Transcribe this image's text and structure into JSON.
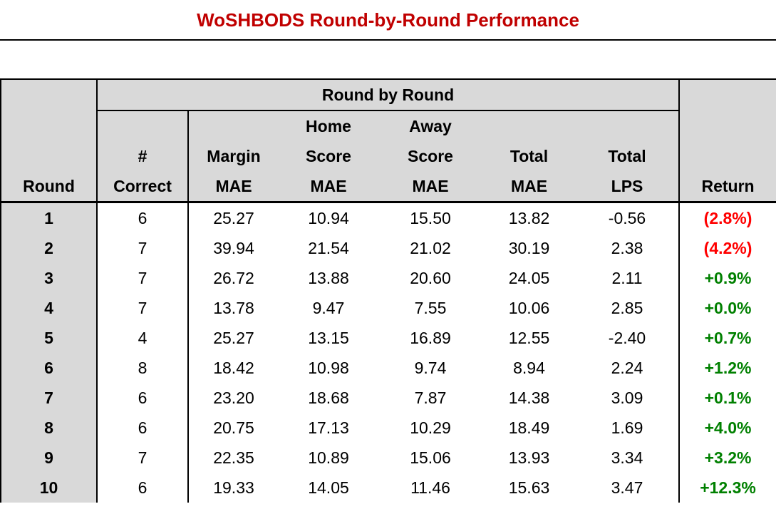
{
  "title": "WoSHBODS Round-by-Round Performance",
  "colors": {
    "title_red": "#C00000",
    "negative_return_red": "#FF0000",
    "positive_return_green": "#008000",
    "header_bg_gray": "#D9D9D9",
    "border_black": "#000000"
  },
  "table": {
    "group_header": "Round by Round",
    "headers": {
      "round": "Round",
      "correct": "#\nCorrect",
      "margin": "Margin\nMAE",
      "home": "Home\nScore\nMAE",
      "away": "Away\nScore\nMAE",
      "total": "Total\nMAE",
      "lps": "Total\nLPS",
      "ret": "Return"
    },
    "rows": [
      {
        "round": "1",
        "correct": "6",
        "margin": "25.27",
        "home": "10.94",
        "away": "15.50",
        "total": "13.82",
        "lps": "-0.56",
        "ret": "(2.8%)"
      },
      {
        "round": "2",
        "correct": "7",
        "margin": "39.94",
        "home": "21.54",
        "away": "21.02",
        "total": "30.19",
        "lps": "2.38",
        "ret": "(4.2%)"
      },
      {
        "round": "3",
        "correct": "7",
        "margin": "26.72",
        "home": "13.88",
        "away": "20.60",
        "total": "24.05",
        "lps": "2.11",
        "ret": "+0.9%"
      },
      {
        "round": "4",
        "correct": "7",
        "margin": "13.78",
        "home": "9.47",
        "away": "7.55",
        "total": "10.06",
        "lps": "2.85",
        "ret": "+0.0%"
      },
      {
        "round": "5",
        "correct": "4",
        "margin": "25.27",
        "home": "13.15",
        "away": "16.89",
        "total": "12.55",
        "lps": "-2.40",
        "ret": "+0.7%"
      },
      {
        "round": "6",
        "correct": "8",
        "margin": "18.42",
        "home": "10.98",
        "away": "9.74",
        "total": "8.94",
        "lps": "2.24",
        "ret": "+1.2%"
      },
      {
        "round": "7",
        "correct": "6",
        "margin": "23.20",
        "home": "18.68",
        "away": "7.87",
        "total": "14.38",
        "lps": "3.09",
        "ret": "+0.1%"
      },
      {
        "round": "8",
        "correct": "6",
        "margin": "20.75",
        "home": "17.13",
        "away": "10.29",
        "total": "18.49",
        "lps": "1.69",
        "ret": "+4.0%"
      },
      {
        "round": "9",
        "correct": "7",
        "margin": "22.35",
        "home": "10.89",
        "away": "15.06",
        "total": "13.93",
        "lps": "3.34",
        "ret": "+3.2%"
      },
      {
        "round": "10",
        "correct": "6",
        "margin": "19.33",
        "home": "14.05",
        "away": "11.46",
        "total": "15.63",
        "lps": "3.47",
        "ret": "+12.3%"
      }
    ]
  },
  "chart_data": {
    "type": "table",
    "title": "WoSHBODS Round-by-Round Performance",
    "columns": [
      "Round",
      "# Correct",
      "Margin MAE",
      "Home Score MAE",
      "Away Score MAE",
      "Total MAE",
      "Total LPS",
      "Return"
    ],
    "rows": [
      [
        1,
        6,
        25.27,
        10.94,
        15.5,
        13.82,
        -0.56,
        "(2.8%)"
      ],
      [
        2,
        7,
        39.94,
        21.54,
        21.02,
        30.19,
        2.38,
        "(4.2%)"
      ],
      [
        3,
        7,
        26.72,
        13.88,
        20.6,
        24.05,
        2.11,
        "+0.9%"
      ],
      [
        4,
        7,
        13.78,
        9.47,
        7.55,
        10.06,
        2.85,
        "+0.0%"
      ],
      [
        5,
        4,
        25.27,
        13.15,
        16.89,
        12.55,
        -2.4,
        "+0.7%"
      ],
      [
        6,
        8,
        18.42,
        10.98,
        9.74,
        8.94,
        2.24,
        "+1.2%"
      ],
      [
        7,
        6,
        23.2,
        18.68,
        7.87,
        14.38,
        3.09,
        "+0.1%"
      ],
      [
        8,
        6,
        20.75,
        17.13,
        10.29,
        18.49,
        1.69,
        "+4.0%"
      ],
      [
        9,
        7,
        22.35,
        10.89,
        15.06,
        13.93,
        3.34,
        "+3.2%"
      ],
      [
        10,
        6,
        19.33,
        14.05,
        11.46,
        15.63,
        3.47,
        "+12.3%"
      ]
    ],
    "notes": "Negative returns shown in red parentheses; positive returns in green with + sign. Round column and headers on gray background."
  }
}
